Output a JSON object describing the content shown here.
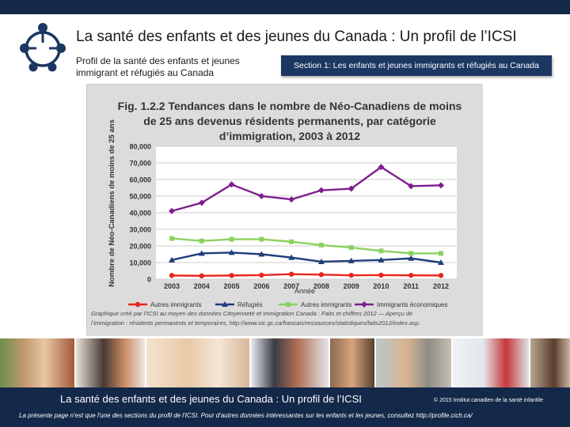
{
  "header": {
    "title": "La santé des enfants et des jeunes du Canada : Un profil de l’ICSI",
    "subtitle": "Profil de la santé des enfants et jeunes immigrant et réfugiés au Canada",
    "section_label": "Section 1: Les enfants et jeunes immigrants et réfugiés au Canada"
  },
  "figure": {
    "title_line1": "Fig. 1.2.2 Tendances  dans le nombre de Néo-Canadiens  de moins",
    "title_line2": "de 25 ans devenus résidents permanents, par catégorie",
    "title_line3": "d’immigration,  2003 à 2012",
    "source_line1": "Graphique créé par l’ICSI au moyen des données Citoyenneté et Immigration Canada : Faits et chiffres 2012 — Aperçu de",
    "source_line2": "l’immigration : résidents permanents et temporaires, http://www.cic.gc.ca/francais/ressources/statistiques/faits2012/index.asp."
  },
  "chart_data": {
    "type": "line",
    "title": "Tendances dans le nombre de Néo-Canadiens de moins de 25 ans devenus résidents permanents, par catégorie d’immigration, 2003 à 2012",
    "xlabel": "Année",
    "ylabel": "Nombre de Néo-Canadiens de moins de 25 ans",
    "x": [
      "2003",
      "2004",
      "2005",
      "2006",
      "2007",
      "2008",
      "2009",
      "2010",
      "2011",
      "2012"
    ],
    "ylim": [
      0,
      80000
    ],
    "yticks": [
      "0",
      "10,000",
      "20,000",
      "30,000",
      "40,000",
      "50,000",
      "60,000",
      "70,000",
      "80,000"
    ],
    "grid": true,
    "legend_position": "bottom",
    "series": [
      {
        "name": "Autres immigrants",
        "color": "#e8261f",
        "marker": "circle",
        "values": [
          2200,
          2000,
          2200,
          2400,
          3000,
          2700,
          2300,
          2400,
          2300,
          2200
        ]
      },
      {
        "name": "Réfugiés",
        "color": "#1f3d7a",
        "marker": "triangle",
        "values": [
          11500,
          15500,
          16000,
          15000,
          13000,
          10500,
          11000,
          11500,
          12500,
          10000
        ]
      },
      {
        "name": "Autres immigrants",
        "color": "#8cd160",
        "marker": "square",
        "values": [
          24500,
          23000,
          24000,
          24000,
          22500,
          20500,
          19000,
          17000,
          15500,
          15500
        ]
      },
      {
        "name": "Immigrants économiques",
        "color": "#7e1f8e",
        "marker": "diamond",
        "values": [
          41000,
          46000,
          57000,
          50000,
          48000,
          53500,
          54500,
          67500,
          56000,
          56500
        ]
      }
    ]
  },
  "footer": {
    "title": "La santé des enfants et des jeunes du Canada : Un profil de l’ICSI",
    "copyright": "© 2015 Institut canadien de la santé infantile",
    "note": "La présente page n'est que l'une des sections du profil de l'ICSI. Pour d'autres données intéressantes sur les enfants et les jeunes, consultez  http://profile.cich.ca/"
  }
}
